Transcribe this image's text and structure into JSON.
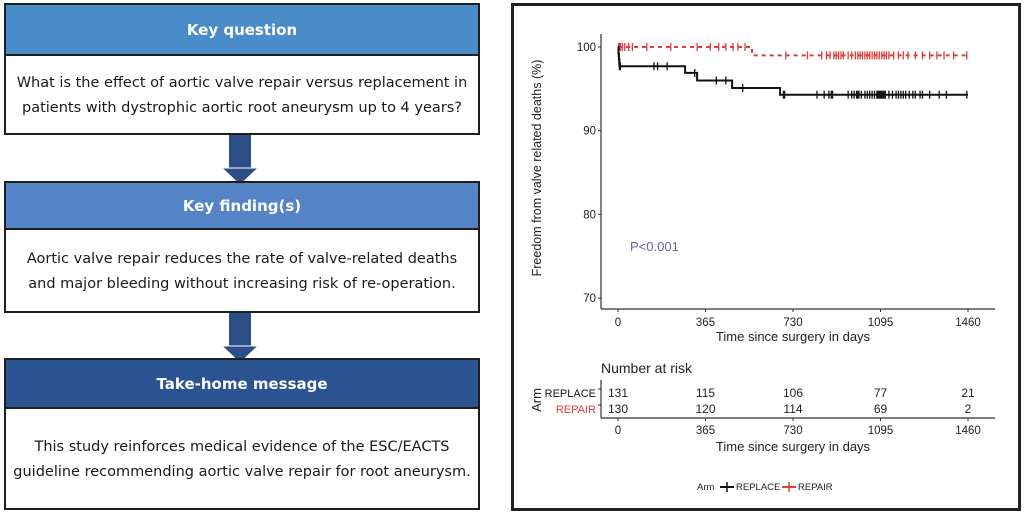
{
  "flow": {
    "boxes": [
      {
        "header": "Key question",
        "header_color": "#4a8cc7",
        "text": "What is the effect of aortic valve repair versus replacement in patients with dystrophic aortic root aneurysm up to 4 years?"
      },
      {
        "header": "Key finding(s)",
        "header_color": "#5584c6",
        "text": "Aortic valve repair reduces the rate of valve-related deaths and major bleeding without increasing risk of re-operation."
      },
      {
        "header": "Take-home message",
        "header_color": "#2b5291",
        "text": "This study reinforces medical evidence of the ESC/EACTS guideline recommending aortic valve repair for root aneurysm."
      }
    ],
    "arrow_color": "#2c4f88"
  },
  "chart_data": {
    "type": "line",
    "subtype": "kaplan-meier",
    "ylabel": "Freedom from valve related deaths (%)",
    "xlabel": "Time since surgery in days",
    "xlim": [
      0,
      1460
    ],
    "ylim": [
      70,
      100
    ],
    "x_ticks": [
      0,
      365,
      730,
      1095,
      1460
    ],
    "y_ticks": [
      70,
      80,
      90,
      100
    ],
    "annotation": "P<0.001",
    "annotation_color": "#6b5fa8",
    "legend": {
      "title": "Arm",
      "position": "bottom",
      "entries": [
        "REPLACE",
        "REPAIR"
      ]
    },
    "series": [
      {
        "name": "REPLACE",
        "color": "#111111",
        "style": "solid",
        "steps": [
          [
            0,
            100
          ],
          [
            2,
            99.2
          ],
          [
            4,
            98.5
          ],
          [
            6,
            97.7
          ],
          [
            280,
            96.9
          ],
          [
            330,
            96.0
          ],
          [
            476,
            95.1
          ],
          [
            676,
            94.3
          ],
          [
            1460,
            94.3
          ]
        ],
        "censor_times": [
          2,
          4,
          6,
          8,
          10,
          150,
          165,
          205,
          320,
          410,
          450,
          520,
          690,
          695,
          830,
          860,
          880,
          890,
          895,
          960,
          975,
          985,
          995,
          1000,
          1005,
          1015,
          1030,
          1040,
          1050,
          1060,
          1070,
          1080,
          1085,
          1090,
          1095,
          1100,
          1105,
          1110,
          1115,
          1130,
          1145,
          1160,
          1170,
          1180,
          1190,
          1200,
          1215,
          1230,
          1240,
          1260,
          1270,
          1300,
          1340,
          1370,
          1455
        ]
      },
      {
        "name": "REPAIR",
        "color": "#e03c3c",
        "style": "dotted",
        "steps": [
          [
            0,
            100
          ],
          [
            559,
            99.0
          ],
          [
            1460,
            99.0
          ]
        ],
        "censor_times": [
          2,
          6,
          10,
          18,
          28,
          45,
          60,
          120,
          220,
          330,
          385,
          420,
          450,
          480,
          500,
          530,
          700,
          790,
          850,
          870,
          885,
          900,
          910,
          920,
          930,
          940,
          960,
          975,
          990,
          1000,
          1010,
          1020,
          1030,
          1040,
          1050,
          1060,
          1070,
          1080,
          1090,
          1100,
          1110,
          1120,
          1130,
          1150,
          1170,
          1190,
          1210,
          1240,
          1270,
          1300,
          1330,
          1360,
          1400,
          1455
        ]
      }
    ],
    "risk_table": {
      "title": "Number at risk",
      "ylabel": "Arm",
      "xlabel": "Time since surgery in days",
      "times": [
        0,
        365,
        730,
        1095,
        1460
      ],
      "rows": [
        {
          "name": "REPLACE",
          "color": "#111111",
          "values": [
            131,
            115,
            106,
            77,
            21
          ]
        },
        {
          "name": "REPAIR",
          "color": "#e03c3c",
          "values": [
            130,
            120,
            114,
            69,
            2
          ]
        }
      ]
    }
  }
}
